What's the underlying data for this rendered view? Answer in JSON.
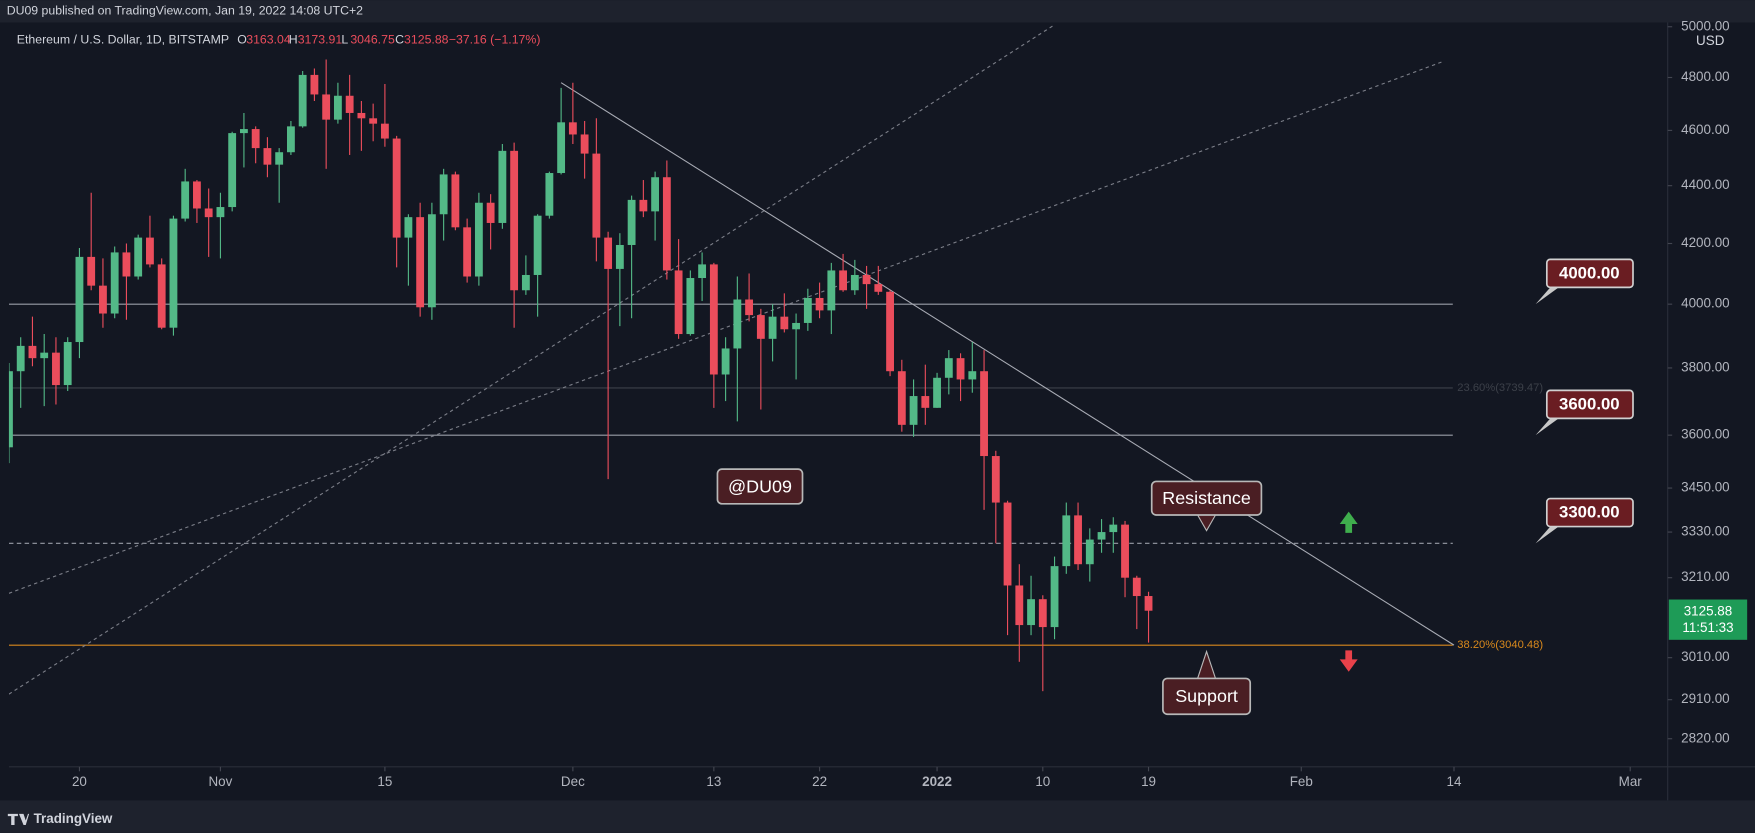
{
  "header": {
    "byline": "DU09 published on TradingView.com, Jan 19, 2022 14:08 UTC+2"
  },
  "footer": {
    "brand": "TradingView"
  },
  "chart_data": {
    "type": "candlestick",
    "title": "Ethereum / U.S. Dollar, 1D, BITSTAMP",
    "ohlc_letters": [
      "O",
      "H",
      "L",
      "C"
    ],
    "change_label": "−37.16 (−1.17%)",
    "currency": "USD",
    "countdown": "11:51:33",
    "up_color": "#53b987",
    "down_color": "#eb4d5c",
    "log_scale": true,
    "grid": false,
    "x": [
      "2021-10-14",
      "2021-10-15",
      "2021-10-16",
      "2021-10-17",
      "2021-10-18",
      "2021-10-19",
      "2021-10-20",
      "2021-10-21",
      "2021-10-22",
      "2021-10-23",
      "2021-10-24",
      "2021-10-25",
      "2021-10-26",
      "2021-10-27",
      "2021-10-28",
      "2021-10-29",
      "2021-10-30",
      "2021-10-31",
      "2021-11-01",
      "2021-11-02",
      "2021-11-03",
      "2021-11-04",
      "2021-11-05",
      "2021-11-06",
      "2021-11-07",
      "2021-11-08",
      "2021-11-09",
      "2021-11-10",
      "2021-11-11",
      "2021-11-12",
      "2021-11-13",
      "2021-11-14",
      "2021-11-15",
      "2021-11-16",
      "2021-11-17",
      "2021-11-18",
      "2021-11-19",
      "2021-11-20",
      "2021-11-21",
      "2021-11-22",
      "2021-11-23",
      "2021-11-24",
      "2021-11-25",
      "2021-11-26",
      "2021-11-27",
      "2021-11-28",
      "2021-11-29",
      "2021-11-30",
      "2021-12-01",
      "2021-12-02",
      "2021-12-03",
      "2021-12-04",
      "2021-12-05",
      "2021-12-06",
      "2021-12-07",
      "2021-12-08",
      "2021-12-09",
      "2021-12-10",
      "2021-12-11",
      "2021-12-12",
      "2021-12-13",
      "2021-12-14",
      "2021-12-15",
      "2021-12-16",
      "2021-12-17",
      "2021-12-18",
      "2021-12-19",
      "2021-12-20",
      "2021-12-21",
      "2021-12-22",
      "2021-12-23",
      "2021-12-24",
      "2021-12-25",
      "2021-12-26",
      "2021-12-27",
      "2021-12-28",
      "2021-12-29",
      "2021-12-30",
      "2021-12-31",
      "2022-01-01",
      "2022-01-02",
      "2022-01-03",
      "2022-01-04",
      "2022-01-05",
      "2022-01-06",
      "2022-01-07",
      "2022-01-08",
      "2022-01-09",
      "2022-01-10",
      "2022-01-11",
      "2022-01-12",
      "2022-01-13",
      "2022-01-14",
      "2022-01-15",
      "2022-01-16",
      "2022-01-17",
      "2022-01-18",
      "2022-01-19"
    ],
    "open": [
      3565,
      3790,
      3868,
      3830,
      3847,
      3748,
      3880,
      4155,
      4060,
      3970,
      4170,
      4090,
      4220,
      4130,
      3925,
      4285,
      4415,
      4320,
      4290,
      4325,
      4590,
      4605,
      4535,
      4475,
      4520,
      4615,
      4810,
      4735,
      4640,
      4730,
      4665,
      4645,
      4625,
      4570,
      4220,
      4290,
      3990,
      4300,
      4440,
      4255,
      4090,
      4340,
      4270,
      4525,
      4045,
      4095,
      4295,
      4445,
      4630,
      4585,
      4515,
      4220,
      4115,
      4195,
      4350,
      4310,
      4430,
      4110,
      3905,
      4085,
      4130,
      3780,
      3860,
      4015,
      3965,
      3890,
      3960,
      3920,
      3940,
      4020,
      3980,
      4110,
      4045,
      4095,
      4065,
      4040,
      3790,
      3630,
      3715,
      3680,
      3770,
      3830,
      3765,
      3790,
      3540,
      3410,
      3190,
      3090,
      3155,
      3085,
      3240,
      3375,
      3245,
      3310,
      3330,
      3350,
      3210,
      3163.04
    ],
    "high": [
      3815,
      3895,
      3960,
      3905,
      3895,
      3895,
      4185,
      4375,
      4150,
      4190,
      4200,
      4230,
      4295,
      4150,
      4295,
      4460,
      4420,
      4390,
      4375,
      4595,
      4665,
      4615,
      4575,
      4535,
      4635,
      4825,
      4835,
      4870,
      4780,
      4810,
      4710,
      4700,
      4775,
      4580,
      4300,
      4340,
      4340,
      4460,
      4450,
      4285,
      4375,
      4370,
      4550,
      4555,
      4160,
      4300,
      4450,
      4760,
      4780,
      4635,
      4645,
      4240,
      4235,
      4365,
      4420,
      4450,
      4490,
      4215,
      4110,
      4170,
      4135,
      3895,
      4090,
      4100,
      3985,
      4000,
      4035,
      3970,
      4050,
      4070,
      4135,
      4165,
      4145,
      4125,
      4125,
      4045,
      3825,
      3765,
      3810,
      3785,
      3855,
      3845,
      3880,
      3855,
      3555,
      3415,
      3245,
      3215,
      3165,
      3265,
      3410,
      3410,
      3340,
      3365,
      3370,
      3360,
      3215,
      3173.91
    ],
    "low": [
      3520,
      3680,
      3805,
      3685,
      3690,
      3730,
      3830,
      4045,
      3925,
      3955,
      3950,
      4080,
      4120,
      3920,
      3900,
      4275,
      4270,
      4155,
      4150,
      4310,
      4465,
      4480,
      4430,
      4340,
      4510,
      4610,
      4710,
      4460,
      4625,
      4510,
      4525,
      4560,
      4540,
      4120,
      4060,
      3960,
      3950,
      4210,
      4245,
      4070,
      4060,
      4180,
      4250,
      3925,
      4030,
      3960,
      4285,
      4440,
      4550,
      4425,
      4140,
      3475,
      3930,
      3955,
      4290,
      4210,
      4080,
      3890,
      3900,
      4010,
      3680,
      3700,
      3640,
      3945,
      3675,
      3820,
      3910,
      3765,
      3915,
      3955,
      3905,
      4040,
      4030,
      3985,
      4030,
      3775,
      3610,
      3595,
      3630,
      3680,
      3720,
      3700,
      3725,
      3390,
      3300,
      3065,
      3000,
      3065,
      2930,
      3055,
      3220,
      3230,
      3200,
      3275,
      3275,
      3160,
      3080,
      3046.75
    ],
    "close": [
      3790,
      3868,
      3830,
      3847,
      3748,
      3880,
      4155,
      4060,
      3970,
      4170,
      4090,
      4220,
      4130,
      3925,
      4285,
      4415,
      4320,
      4290,
      4325,
      4590,
      4605,
      4535,
      4475,
      4520,
      4615,
      4810,
      4735,
      4640,
      4730,
      4665,
      4645,
      4625,
      4570,
      4220,
      4290,
      3990,
      4300,
      4440,
      4255,
      4090,
      4340,
      4270,
      4525,
      4045,
      4095,
      4295,
      4445,
      4630,
      4585,
      4515,
      4220,
      4115,
      4195,
      4350,
      4310,
      4430,
      4110,
      3905,
      4085,
      4130,
      3780,
      3860,
      4015,
      3965,
      3890,
      3960,
      3920,
      3940,
      4020,
      3980,
      4110,
      4045,
      4095,
      4065,
      4040,
      3790,
      3630,
      3715,
      3680,
      3770,
      3830,
      3765,
      3790,
      3540,
      3410,
      3190,
      3090,
      3155,
      3085,
      3240,
      3375,
      3245,
      3310,
      3330,
      3350,
      3210,
      3163,
      3125.88
    ],
    "xlim": [
      "2021-10-14",
      "2022-03-04"
    ],
    "xticks": [
      {
        "value": "2021-10-20",
        "label": "20"
      },
      {
        "value": "2021-11-01",
        "label": "Nov"
      },
      {
        "value": "2021-11-15",
        "label": "15"
      },
      {
        "value": "2021-12-01",
        "label": "Dec"
      },
      {
        "value": "2021-12-13",
        "label": "13"
      },
      {
        "value": "2021-12-22",
        "label": "22"
      },
      {
        "value": "2022-01-01",
        "label": "2022"
      },
      {
        "value": "2022-01-10",
        "label": "10"
      },
      {
        "value": "2022-01-19",
        "label": "19"
      },
      {
        "value": "2022-02-01",
        "label": "Feb"
      },
      {
        "value": "2022-02-14",
        "label": "14"
      },
      {
        "value": "2022-03-01",
        "label": "Mar"
      }
    ],
    "ylim": [
      2757,
      5008
    ],
    "yticks": [
      {
        "value": 5000,
        "label": "5000.00"
      },
      {
        "value": 4800,
        "label": "4800.00"
      },
      {
        "value": 4600,
        "label": "4600.00"
      },
      {
        "value": 4400,
        "label": "4400.00"
      },
      {
        "value": 4200,
        "label": "4200.00"
      },
      {
        "value": 4000,
        "label": "4000.00"
      },
      {
        "value": 3800,
        "label": "3800.00"
      },
      {
        "value": 3600,
        "label": "3600.00"
      },
      {
        "value": 3450,
        "label": "3450.00"
      },
      {
        "value": 3330,
        "label": "3330.00"
      },
      {
        "value": 3210,
        "label": "3210.00"
      },
      {
        "value": 3010,
        "label": "3010.00"
      },
      {
        "value": 2910,
        "label": "2910.00"
      },
      {
        "value": 2820,
        "label": "2820.00"
      }
    ],
    "levels": [
      {
        "value": 4000,
        "label": "4000.00",
        "style": "solid"
      },
      {
        "value": 3600,
        "label": "3600.00",
        "style": "solid"
      },
      {
        "value": 3300,
        "label": "3300.00",
        "style": "dashed"
      }
    ],
    "fib_levels": [
      {
        "value": 3739.47,
        "label": "23.60%(3739.47)",
        "color": "#3c4049"
      },
      {
        "value": 3040.48,
        "label": "38.20%(3040.48)",
        "color": "#d9891c"
      }
    ],
    "trendlines": [
      {
        "x": [
          "2021-11-30",
          "2022-02-14"
        ],
        "y": [
          4780,
          3040.48
        ],
        "style": "solid"
      },
      {
        "x": [
          "2021-10-14",
          "2022-01-11"
        ],
        "y": [
          2923,
          5008
        ],
        "style": "dotted"
      },
      {
        "x": [
          "2021-10-14",
          "2022-02-13"
        ],
        "y": [
          3170,
          4861
        ],
        "style": "dotted"
      }
    ],
    "annotations": [
      "@DU09",
      "Resistance",
      "Support"
    ]
  }
}
